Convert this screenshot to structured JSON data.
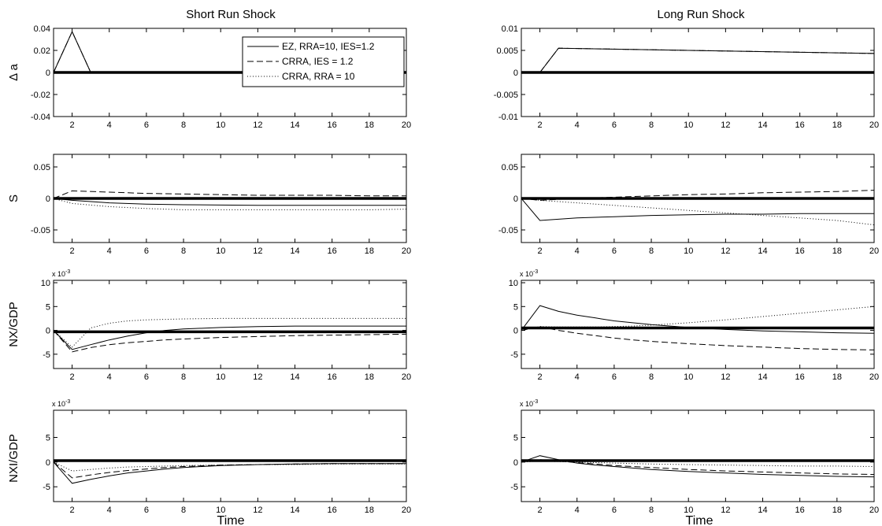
{
  "figure": {
    "col_titles": [
      "Short Run Shock",
      "Long Run Shock"
    ],
    "xlabel": "Time",
    "row_ylabels": [
      "Δ a",
      "S",
      "NX/GDP",
      "NXI/GDP"
    ],
    "legend": [
      "EZ, RRA=10, IES=1.2",
      "CRRA, IES = 1.2",
      "CRRA, RRA = 10"
    ]
  },
  "chart_data": [
    {
      "type": "line",
      "panel": "short-run-delta-a",
      "title": "Short Run Shock",
      "ylabel": "Δ a",
      "xlabel": "",
      "xlim": [
        1,
        20
      ],
      "ylim": [
        -0.04,
        0.04
      ],
      "xticks": [
        "2",
        "4",
        "6",
        "8",
        "10",
        "12",
        "14",
        "16",
        "18",
        "20"
      ],
      "yticks": [
        "0.04",
        "0.02",
        "0",
        "-0.02",
        "-0.04"
      ],
      "ytick_values": [
        0.04,
        0.02,
        0,
        -0.02,
        -0.04
      ],
      "exponent": "",
      "zero_line": 0,
      "legend": "top-right",
      "series": [
        {
          "name": "EZ, RRA=10, IES=1.2",
          "style": "solid",
          "x": [
            1,
            2,
            3,
            20
          ],
          "values": [
            0,
            0.037,
            0,
            0
          ]
        },
        {
          "name": "CRRA, IES = 1.2",
          "style": "dashed",
          "x": [
            1,
            2,
            3,
            20
          ],
          "values": [
            0,
            0.037,
            0,
            0
          ]
        },
        {
          "name": "CRRA, RRA = 10",
          "style": "dotted",
          "x": [
            1,
            2,
            3,
            20
          ],
          "values": [
            0,
            0.037,
            0,
            0
          ]
        }
      ]
    },
    {
      "type": "line",
      "panel": "long-run-delta-a",
      "title": "Long Run Shock",
      "ylabel": "",
      "xlabel": "",
      "xlim": [
        1,
        20
      ],
      "ylim": [
        -0.01,
        0.01
      ],
      "xticks": [
        "2",
        "4",
        "6",
        "8",
        "10",
        "12",
        "14",
        "16",
        "18",
        "20"
      ],
      "yticks": [
        "0.01",
        "0.005",
        "0",
        "-0.005",
        "-0.01"
      ],
      "ytick_values": [
        0.01,
        0.005,
        0,
        -0.005,
        -0.01
      ],
      "exponent": "",
      "zero_line": 0,
      "legend": "",
      "series": [
        {
          "name": "EZ, RRA=10, IES=1.2",
          "style": "solid",
          "x": [
            1,
            2,
            3,
            20
          ],
          "values": [
            0,
            0,
            0.0055,
            0.0043
          ]
        },
        {
          "name": "CRRA, IES = 1.2",
          "style": "dashed",
          "x": [
            1,
            2,
            3,
            20
          ],
          "values": [
            0,
            0,
            0.0055,
            0.0043
          ]
        },
        {
          "name": "CRRA, RRA = 10",
          "style": "dotted",
          "x": [
            1,
            2,
            3,
            20
          ],
          "values": [
            0,
            0,
            0.0055,
            0.0043
          ]
        }
      ]
    },
    {
      "type": "line",
      "panel": "short-run-s",
      "title": "",
      "ylabel": "S",
      "xlabel": "",
      "xlim": [
        1,
        20
      ],
      "ylim": [
        -0.07,
        0.07
      ],
      "xticks": [
        "2",
        "4",
        "6",
        "8",
        "10",
        "12",
        "14",
        "16",
        "18",
        "20"
      ],
      "yticks": [
        "0.05",
        "0",
        "-0.05"
      ],
      "ytick_values": [
        0.05,
        0,
        -0.05
      ],
      "exponent": "",
      "zero_line": 0,
      "legend": "",
      "series": [
        {
          "name": "EZ, RRA=10, IES=1.2",
          "style": "solid",
          "x": [
            1,
            2,
            4,
            6,
            8,
            10,
            12,
            14,
            16,
            18,
            20
          ],
          "values": [
            0,
            -0.003,
            -0.007,
            -0.009,
            -0.01,
            -0.0105,
            -0.011,
            -0.011,
            -0.011,
            -0.011,
            -0.011
          ]
        },
        {
          "name": "CRRA, IES = 1.2",
          "style": "dashed",
          "x": [
            1,
            2,
            4,
            6,
            8,
            10,
            12,
            14,
            16,
            18,
            20
          ],
          "values": [
            0,
            0.012,
            0.01,
            0.008,
            0.007,
            0.006,
            0.005,
            0.005,
            0.005,
            0.004,
            0.004
          ]
        },
        {
          "name": "CRRA, RRA = 10",
          "style": "dotted",
          "x": [
            1,
            2,
            4,
            6,
            8,
            10,
            12,
            14,
            16,
            18,
            20
          ],
          "values": [
            0,
            -0.008,
            -0.013,
            -0.016,
            -0.018,
            -0.018,
            -0.018,
            -0.018,
            -0.018,
            -0.018,
            -0.017
          ]
        }
      ]
    },
    {
      "type": "line",
      "panel": "long-run-s",
      "title": "",
      "ylabel": "",
      "xlabel": "",
      "xlim": [
        1,
        20
      ],
      "ylim": [
        -0.07,
        0.07
      ],
      "xticks": [
        "2",
        "4",
        "6",
        "8",
        "10",
        "12",
        "14",
        "16",
        "18",
        "20"
      ],
      "yticks": [
        "0.05",
        "0",
        "-0.05"
      ],
      "ytick_values": [
        0.05,
        0,
        -0.05
      ],
      "exponent": "",
      "zero_line": 0,
      "legend": "",
      "series": [
        {
          "name": "EZ, RRA=10, IES=1.2",
          "style": "solid",
          "x": [
            1,
            2,
            4,
            6,
            8,
            10,
            12,
            14,
            16,
            18,
            20
          ],
          "values": [
            0,
            -0.035,
            -0.031,
            -0.029,
            -0.027,
            -0.026,
            -0.025,
            -0.025,
            -0.024,
            -0.024,
            -0.024
          ]
        },
        {
          "name": "CRRA, IES = 1.2",
          "style": "dashed",
          "x": [
            1,
            2,
            4,
            6,
            8,
            10,
            12,
            14,
            16,
            18,
            20
          ],
          "values": [
            0,
            -0.003,
            0,
            0.002,
            0.004,
            0.006,
            0.007,
            0.009,
            0.01,
            0.011,
            0.013
          ]
        },
        {
          "name": "CRRA, RRA = 10",
          "style": "dotted",
          "x": [
            1,
            2,
            4,
            6,
            8,
            10,
            12,
            14,
            16,
            18,
            20
          ],
          "values": [
            0,
            -0.003,
            -0.007,
            -0.011,
            -0.015,
            -0.019,
            -0.023,
            -0.027,
            -0.031,
            -0.035,
            -0.042
          ]
        }
      ]
    },
    {
      "type": "line",
      "panel": "short-run-nx-gdp",
      "title": "",
      "ylabel": "NX/GDP",
      "xlabel": "",
      "xlim": [
        1,
        20
      ],
      "ylim": [
        -8,
        10.5
      ],
      "xticks": [
        "2",
        "4",
        "6",
        "8",
        "10",
        "12",
        "14",
        "16",
        "18",
        "20"
      ],
      "yticks": [
        "10",
        "5",
        "0",
        "-5"
      ],
      "ytick_values": [
        10,
        5,
        0,
        -5
      ],
      "exponent": "x 10^-3",
      "zero_line": -0.3,
      "legend": "",
      "series": [
        {
          "name": "EZ, RRA=10, IES=1.2",
          "style": "solid",
          "x": [
            1,
            2,
            3,
            4,
            5,
            6,
            7,
            8,
            10,
            12,
            14,
            16,
            18,
            20
          ],
          "values": [
            0,
            -4,
            -3,
            -2,
            -1.2,
            -0.5,
            0,
            0.3,
            0.6,
            0.8,
            0.9,
            0.9,
            0.9,
            0.9
          ]
        },
        {
          "name": "CRRA, IES = 1.2",
          "style": "dashed",
          "x": [
            1,
            2,
            3,
            4,
            5,
            6,
            7,
            8,
            10,
            12,
            14,
            16,
            18,
            20
          ],
          "values": [
            0,
            -4.5,
            -3.6,
            -3,
            -2.6,
            -2.3,
            -2,
            -1.8,
            -1.5,
            -1.3,
            -1.1,
            -1,
            -0.9,
            -0.8
          ]
        },
        {
          "name": "CRRA, RRA = 10",
          "style": "dotted",
          "x": [
            1,
            2,
            3,
            4,
            5,
            6,
            7,
            8,
            10,
            12,
            14,
            16,
            18,
            20
          ],
          "values": [
            0,
            -3.5,
            0.5,
            1.5,
            2,
            2.2,
            2.3,
            2.4,
            2.5,
            2.5,
            2.5,
            2.5,
            2.5,
            2.5
          ]
        }
      ]
    },
    {
      "type": "line",
      "panel": "long-run-nx-gdp",
      "title": "",
      "ylabel": "",
      "xlabel": "",
      "xlim": [
        1,
        20
      ],
      "ylim": [
        -8,
        10.5
      ],
      "xticks": [
        "2",
        "4",
        "6",
        "8",
        "10",
        "12",
        "14",
        "16",
        "18",
        "20"
      ],
      "yticks": [
        "10",
        "5",
        "0",
        "-5"
      ],
      "ytick_values": [
        10,
        5,
        0,
        -5
      ],
      "exponent": "x 10^-3",
      "zero_line": 0.5,
      "legend": "",
      "series": [
        {
          "name": "EZ, RRA=10, IES=1.2",
          "style": "solid",
          "x": [
            1,
            2,
            3,
            4,
            5,
            6,
            7,
            8,
            10,
            12,
            14,
            16,
            18,
            20
          ],
          "values": [
            0,
            5.2,
            4,
            3.2,
            2.6,
            2,
            1.6,
            1.2,
            0.6,
            0.2,
            -0.1,
            -0.3,
            -0.5,
            -0.6
          ]
        },
        {
          "name": "CRRA, IES = 1.2",
          "style": "dashed",
          "x": [
            1,
            2,
            3,
            4,
            5,
            6,
            7,
            8,
            10,
            12,
            14,
            16,
            18,
            20
          ],
          "values": [
            0,
            0.8,
            0,
            -0.6,
            -1.1,
            -1.6,
            -2,
            -2.3,
            -2.8,
            -3.2,
            -3.5,
            -3.8,
            -4,
            -4.1
          ]
        },
        {
          "name": "CRRA, RRA = 10",
          "style": "dotted",
          "x": [
            1,
            2,
            3,
            4,
            5,
            6,
            7,
            8,
            10,
            12,
            14,
            16,
            18,
            20
          ],
          "values": [
            0,
            0.8,
            0.7,
            0.7,
            0.7,
            0.8,
            0.9,
            1.1,
            1.6,
            2.2,
            2.9,
            3.6,
            4.3,
            5
          ]
        }
      ]
    },
    {
      "type": "line",
      "panel": "short-run-nxi-gdp",
      "title": "",
      "ylabel": "NXI/GDP",
      "xlabel": "Time",
      "xlim": [
        1,
        20
      ],
      "ylim": [
        -8,
        10.5
      ],
      "xticks": [
        "2",
        "4",
        "6",
        "8",
        "10",
        "12",
        "14",
        "16",
        "18",
        "20"
      ],
      "yticks": [
        "5",
        "0",
        "-5"
      ],
      "ytick_values": [
        5,
        0,
        -5
      ],
      "exponent": "x 10^-3",
      "zero_line": 0.3,
      "legend": "",
      "series": [
        {
          "name": "EZ, RRA=10, IES=1.2",
          "style": "solid",
          "x": [
            1,
            2,
            3,
            4,
            5,
            6,
            7,
            8,
            10,
            12,
            14,
            16,
            18,
            20
          ],
          "values": [
            0,
            -4.3,
            -3.5,
            -2.8,
            -2.2,
            -1.8,
            -1.4,
            -1.1,
            -0.7,
            -0.5,
            -0.4,
            -0.3,
            -0.3,
            -0.3
          ]
        },
        {
          "name": "CRRA, IES = 1.2",
          "style": "dashed",
          "x": [
            1,
            2,
            3,
            4,
            5,
            6,
            7,
            8,
            10,
            12,
            14,
            16,
            18,
            20
          ],
          "values": [
            0,
            -3.2,
            -2.6,
            -2.1,
            -1.7,
            -1.4,
            -1.1,
            -0.9,
            -0.6,
            -0.5,
            -0.4,
            -0.3,
            -0.3,
            -0.3
          ]
        },
        {
          "name": "CRRA, RRA = 10",
          "style": "dotted",
          "x": [
            1,
            2,
            3,
            4,
            5,
            6,
            7,
            8,
            10,
            12,
            14,
            16,
            18,
            20
          ],
          "values": [
            0,
            -1.8,
            -1.5,
            -1.2,
            -1,
            -0.9,
            -0.8,
            -0.7,
            -0.6,
            -0.5,
            -0.5,
            -0.4,
            -0.4,
            -0.4
          ]
        }
      ]
    },
    {
      "type": "line",
      "panel": "long-run-nxi-gdp",
      "title": "",
      "ylabel": "",
      "xlabel": "Time",
      "xlim": [
        1,
        20
      ],
      "ylim": [
        -8,
        10.5
      ],
      "xticks": [
        "2",
        "4",
        "6",
        "8",
        "10",
        "12",
        "14",
        "16",
        "18",
        "20"
      ],
      "yticks": [
        "5",
        "0",
        "-5"
      ],
      "ytick_values": [
        5,
        0,
        -5
      ],
      "exponent": "x 10^-3",
      "zero_line": 0.3,
      "legend": "",
      "series": [
        {
          "name": "EZ, RRA=10, IES=1.2",
          "style": "solid",
          "x": [
            1,
            2,
            3,
            4,
            5,
            6,
            7,
            8,
            10,
            12,
            14,
            16,
            18,
            20
          ],
          "values": [
            0,
            1.3,
            0.5,
            -0.2,
            -0.6,
            -0.9,
            -1.2,
            -1.5,
            -1.9,
            -2.2,
            -2.5,
            -2.7,
            -2.9,
            -3
          ]
        },
        {
          "name": "CRRA, IES = 1.2",
          "style": "dashed",
          "x": [
            1,
            2,
            3,
            4,
            5,
            6,
            7,
            8,
            10,
            12,
            14,
            16,
            18,
            20
          ],
          "values": [
            0,
            0.5,
            0.2,
            -0.1,
            -0.4,
            -0.7,
            -0.9,
            -1.1,
            -1.5,
            -1.8,
            -2,
            -2.2,
            -2.4,
            -2.5
          ]
        },
        {
          "name": "CRRA, RRA = 10",
          "style": "dotted",
          "x": [
            1,
            2,
            3,
            4,
            5,
            6,
            7,
            8,
            10,
            12,
            14,
            16,
            18,
            20
          ],
          "values": [
            0,
            0.2,
            0.1,
            0,
            -0.1,
            -0.2,
            -0.3,
            -0.4,
            -0.5,
            -0.6,
            -0.7,
            -0.8,
            -0.8,
            -0.9
          ]
        }
      ]
    }
  ]
}
